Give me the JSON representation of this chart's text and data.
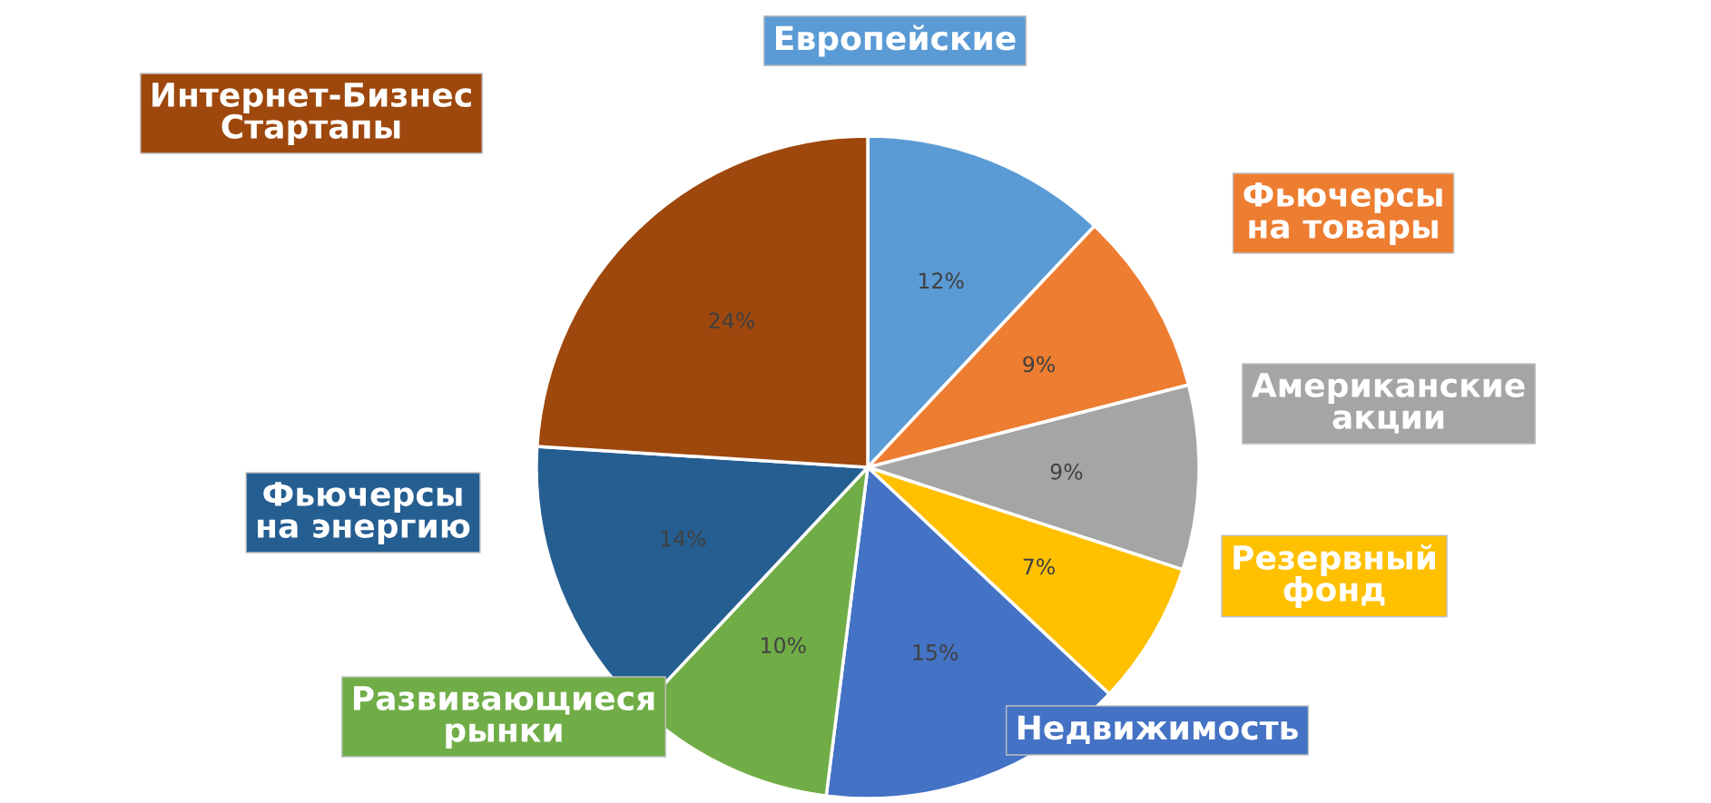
{
  "chart_data": {
    "type": "pie",
    "categories": [
      "Европейские",
      "Фьючерсы на товары",
      "Американские акции",
      "Резервный фонд",
      "Недвижимость",
      "Развивающиеся рынки",
      "Фьючерсы на энергию",
      "Интернет-Бизнес Стартапы"
    ],
    "values": [
      12,
      9,
      9,
      7,
      15,
      10,
      14,
      24
    ],
    "value_labels": [
      "12%",
      "9%",
      "9%",
      "7%",
      "15%",
      "10%",
      "14%",
      "24%"
    ],
    "colors": [
      "#5b9bd5",
      "#ed7d31",
      "#a5a5a5",
      "#ffc000",
      "#4472c4",
      "#70ad47",
      "#255e91",
      "#9e480e"
    ]
  }
}
